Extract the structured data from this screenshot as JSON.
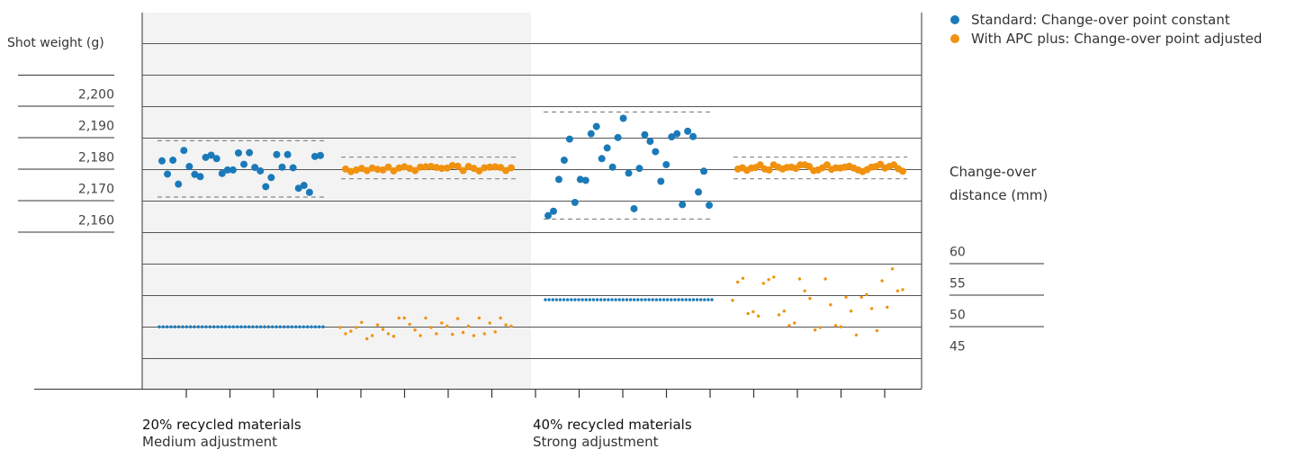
{
  "colors": {
    "standard": "#1a7ab9",
    "apc": "#f0920f",
    "grid": "#555555",
    "panel_bg": "#f3f3f3",
    "limit": "#888888"
  },
  "legend": {
    "standard": "Standard: Change-over point constant",
    "apc": "With APC plus: Change-over point adjusted"
  },
  "captions": [
    {
      "heading": "20% recycled materials",
      "sub": "Medium adjustment"
    },
    {
      "heading": "40% recycled materials",
      "sub": "Strong adjustment"
    }
  ],
  "chart_data": {
    "type": "scatter",
    "left_axis": {
      "label": "Shot weight (g)",
      "ticks": [
        "2,200",
        "2,190",
        "2,180",
        "2,170",
        "2,160"
      ],
      "tick_values": [
        2200,
        2190,
        2180,
        2170,
        2160
      ]
    },
    "right_axis": {
      "label_line1": "Change-over",
      "label_line2": "distance (mm)",
      "ticks": [
        "60",
        "55",
        "50",
        "45"
      ],
      "tick_values": [
        60,
        55,
        50,
        45
      ]
    },
    "groups": [
      {
        "name": "20% recycled materials / Standard",
        "series": "standard",
        "shot_weight": [
          2182.5,
          2178.3,
          2182.7,
          2175.1,
          2185.8,
          2180.7,
          2178.2,
          2177.5,
          2183.6,
          2184.3,
          2183.2,
          2178.5,
          2179.6,
          2179.6,
          2185,
          2181.4,
          2185.1,
          2180.4,
          2179.3,
          2174.3,
          2177.2,
          2184.5,
          2180.5,
          2184.5,
          2180.3,
          2173.8,
          2174.7,
          2172.5,
          2183.9,
          2184.2
        ],
        "limits": [
          2188.9,
          2171.0
        ],
        "change_over": 49.9
      },
      {
        "name": "20% recycled materials / APC plus",
        "series": "apc",
        "shot_weight": [
          2179.9,
          2179.1,
          2179.6,
          2180.1,
          2179.4,
          2180.2,
          2179.8,
          2179.6,
          2180.5,
          2179.3,
          2180.2,
          2180.6,
          2180.1,
          2179.4,
          2180.5,
          2180.6,
          2180.7,
          2180.4,
          2180.1,
          2180.2,
          2181,
          2180.8,
          2179.4,
          2180.7,
          2180.1,
          2179.3,
          2180.3,
          2180.5,
          2180.6,
          2180.4,
          2179.4,
          2180.3
        ],
        "limits": [
          2183.7,
          2176.8
        ],
        "change_over_spread": [
          49.8,
          48.8,
          49.2,
          49.8,
          50.6,
          48,
          48.5,
          50.2,
          49.5,
          48.8,
          48.4,
          51.3,
          51.3,
          50.3,
          49.4,
          48.5,
          51.3,
          49.8,
          48.8,
          50.5,
          50,
          48.7,
          51.2,
          49,
          50,
          48.5,
          51.3,
          48.8,
          50.5,
          49.1,
          51.3,
          50.2,
          50
        ]
      },
      {
        "name": "40% recycled materials / Standard",
        "series": "standard",
        "shot_weight": [
          2165.1,
          2166.5,
          2176.6,
          2182.7,
          2189.4,
          2169.3,
          2176.6,
          2176.3,
          2191.1,
          2193.4,
          2183.2,
          2186.6,
          2180.5,
          2189.9,
          2196,
          2178.6,
          2167.3,
          2180.1,
          2190.8,
          2188.7,
          2185.4,
          2176,
          2181.3,
          2190.1,
          2191.1,
          2168.6,
          2191.9,
          2190.2,
          2172.6,
          2179.2,
          2168.4
        ],
        "limits": [
          2198.0,
          2164.0
        ],
        "change_over": 54.2
      },
      {
        "name": "40% recycled materials / APC plus",
        "series": "apc",
        "shot_weight": [
          2179.9,
          2180.3,
          2179.5,
          2180.2,
          2180.4,
          2181.2,
          2179.9,
          2179.6,
          2181.2,
          2180.5,
          2179.9,
          2180.4,
          2180.5,
          2180.1,
          2181.2,
          2181.2,
          2180.7,
          2179.4,
          2179.6,
          2180.3,
          2181.2,
          2179.8,
          2180.3,
          2180.2,
          2180.5,
          2180.8,
          2180.2,
          2179.6,
          2179.1,
          2179.7,
          2180.5,
          2180.7,
          2181.4,
          2180.2,
          2180.7,
          2181.2,
          2180,
          2179.2
        ],
        "limits": [
          2183.7,
          2176.8
        ],
        "change_over_spread": [
          54.1,
          57,
          57.6,
          52,
          52.3,
          51.6,
          56.8,
          57.4,
          57.8,
          51.8,
          52.4,
          50.1,
          50.5,
          57.5,
          55.6,
          54.4,
          49.4,
          49.8,
          57.5,
          53.4,
          50.1,
          49.9,
          54.6,
          52.4,
          48.6,
          54.6,
          55,
          52.8,
          49.3,
          57.2,
          53,
          59.1,
          55.6,
          55.8
        ]
      }
    ]
  }
}
